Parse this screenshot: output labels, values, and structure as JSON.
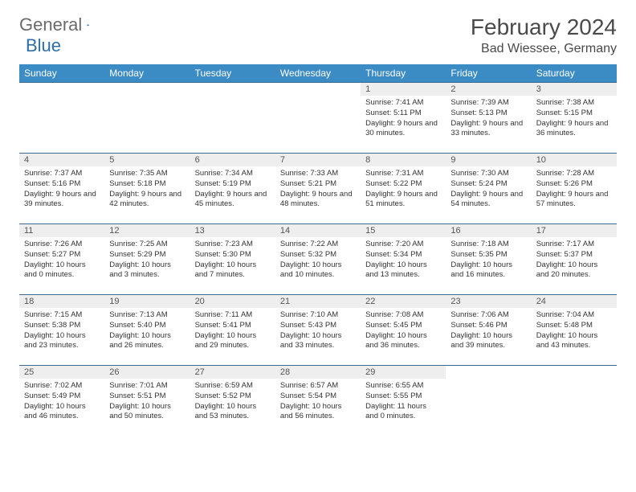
{
  "logo": {
    "word1": "General",
    "word2": "Blue"
  },
  "title": "February 2024",
  "location": "Bad Wiessee, Germany",
  "colors": {
    "header_bg": "#3b8bc4",
    "header_text": "#ffffff",
    "daynum_bg": "#eeeeee",
    "row_border": "#3b6a8f",
    "logo_gray": "#6a6a6a",
    "logo_blue": "#2f6fa8"
  },
  "weekdays": [
    "Sunday",
    "Monday",
    "Tuesday",
    "Wednesday",
    "Thursday",
    "Friday",
    "Saturday"
  ],
  "layout": {
    "first_weekday_index": 4,
    "days_in_month": 29,
    "columns": 7,
    "rows": 5
  },
  "days": {
    "1": {
      "sunrise": "7:41 AM",
      "sunset": "5:11 PM",
      "daylight": "9 hours and 30 minutes."
    },
    "2": {
      "sunrise": "7:39 AM",
      "sunset": "5:13 PM",
      "daylight": "9 hours and 33 minutes."
    },
    "3": {
      "sunrise": "7:38 AM",
      "sunset": "5:15 PM",
      "daylight": "9 hours and 36 minutes."
    },
    "4": {
      "sunrise": "7:37 AM",
      "sunset": "5:16 PM",
      "daylight": "9 hours and 39 minutes."
    },
    "5": {
      "sunrise": "7:35 AM",
      "sunset": "5:18 PM",
      "daylight": "9 hours and 42 minutes."
    },
    "6": {
      "sunrise": "7:34 AM",
      "sunset": "5:19 PM",
      "daylight": "9 hours and 45 minutes."
    },
    "7": {
      "sunrise": "7:33 AM",
      "sunset": "5:21 PM",
      "daylight": "9 hours and 48 minutes."
    },
    "8": {
      "sunrise": "7:31 AM",
      "sunset": "5:22 PM",
      "daylight": "9 hours and 51 minutes."
    },
    "9": {
      "sunrise": "7:30 AM",
      "sunset": "5:24 PM",
      "daylight": "9 hours and 54 minutes."
    },
    "10": {
      "sunrise": "7:28 AM",
      "sunset": "5:26 PM",
      "daylight": "9 hours and 57 minutes."
    },
    "11": {
      "sunrise": "7:26 AM",
      "sunset": "5:27 PM",
      "daylight": "10 hours and 0 minutes."
    },
    "12": {
      "sunrise": "7:25 AM",
      "sunset": "5:29 PM",
      "daylight": "10 hours and 3 minutes."
    },
    "13": {
      "sunrise": "7:23 AM",
      "sunset": "5:30 PM",
      "daylight": "10 hours and 7 minutes."
    },
    "14": {
      "sunrise": "7:22 AM",
      "sunset": "5:32 PM",
      "daylight": "10 hours and 10 minutes."
    },
    "15": {
      "sunrise": "7:20 AM",
      "sunset": "5:34 PM",
      "daylight": "10 hours and 13 minutes."
    },
    "16": {
      "sunrise": "7:18 AM",
      "sunset": "5:35 PM",
      "daylight": "10 hours and 16 minutes."
    },
    "17": {
      "sunrise": "7:17 AM",
      "sunset": "5:37 PM",
      "daylight": "10 hours and 20 minutes."
    },
    "18": {
      "sunrise": "7:15 AM",
      "sunset": "5:38 PM",
      "daylight": "10 hours and 23 minutes."
    },
    "19": {
      "sunrise": "7:13 AM",
      "sunset": "5:40 PM",
      "daylight": "10 hours and 26 minutes."
    },
    "20": {
      "sunrise": "7:11 AM",
      "sunset": "5:41 PM",
      "daylight": "10 hours and 29 minutes."
    },
    "21": {
      "sunrise": "7:10 AM",
      "sunset": "5:43 PM",
      "daylight": "10 hours and 33 minutes."
    },
    "22": {
      "sunrise": "7:08 AM",
      "sunset": "5:45 PM",
      "daylight": "10 hours and 36 minutes."
    },
    "23": {
      "sunrise": "7:06 AM",
      "sunset": "5:46 PM",
      "daylight": "10 hours and 39 minutes."
    },
    "24": {
      "sunrise": "7:04 AM",
      "sunset": "5:48 PM",
      "daylight": "10 hours and 43 minutes."
    },
    "25": {
      "sunrise": "7:02 AM",
      "sunset": "5:49 PM",
      "daylight": "10 hours and 46 minutes."
    },
    "26": {
      "sunrise": "7:01 AM",
      "sunset": "5:51 PM",
      "daylight": "10 hours and 50 minutes."
    },
    "27": {
      "sunrise": "6:59 AM",
      "sunset": "5:52 PM",
      "daylight": "10 hours and 53 minutes."
    },
    "28": {
      "sunrise": "6:57 AM",
      "sunset": "5:54 PM",
      "daylight": "10 hours and 56 minutes."
    },
    "29": {
      "sunrise": "6:55 AM",
      "sunset": "5:55 PM",
      "daylight": "11 hours and 0 minutes."
    }
  },
  "labels": {
    "sunrise": "Sunrise:",
    "sunset": "Sunset:",
    "daylight": "Daylight:"
  }
}
